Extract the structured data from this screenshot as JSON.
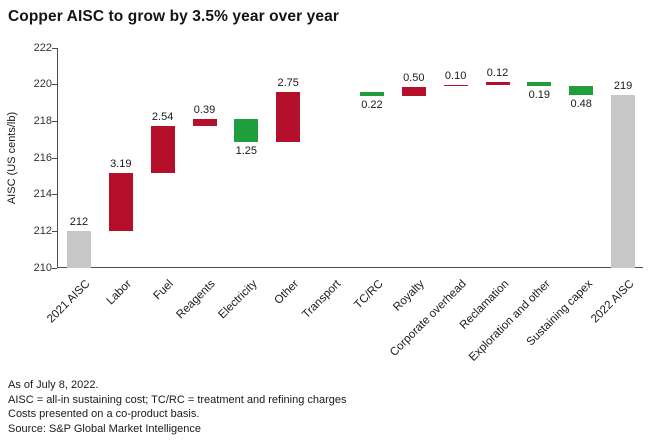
{
  "title": "Copper AISC to grow by 3.5% year over year",
  "chart_data": {
    "type": "bar",
    "subtype": "waterfall",
    "title": "Copper AISC to grow by 3.5% year over year",
    "xlabel": "",
    "ylabel": "AISC (US cents/lb)",
    "ylim": [
      210,
      222
    ],
    "yticks": [
      210,
      212,
      214,
      216,
      218,
      220,
      222
    ],
    "grid": false,
    "legend": "none",
    "colors": {
      "increase": "#b5102b",
      "decrease": "#209e3d",
      "total": "#c7c7c7",
      "none": "transparent"
    },
    "bars": [
      {
        "label": "2021 AISC",
        "type": "total",
        "value": 212,
        "start": 210,
        "end": 212,
        "value_label": "212",
        "label_pos": "above"
      },
      {
        "label": "Labor",
        "type": "increase",
        "value": 3.19,
        "start": 212,
        "end": 215.19,
        "value_label": "3.19",
        "label_pos": "above"
      },
      {
        "label": "Fuel",
        "type": "increase",
        "value": 2.54,
        "start": 215.19,
        "end": 217.73,
        "value_label": "2.54",
        "label_pos": "above"
      },
      {
        "label": "Reagents",
        "type": "increase",
        "value": 0.39,
        "start": 217.73,
        "end": 218.12,
        "value_label": "0.39",
        "label_pos": "above"
      },
      {
        "label": "Electricity",
        "type": "decrease",
        "value": -1.25,
        "start": 218.12,
        "end": 216.87,
        "value_label": "1.25",
        "label_pos": "below"
      },
      {
        "label": "Other",
        "type": "increase",
        "value": 2.75,
        "start": 216.87,
        "end": 219.62,
        "value_label": "2.75",
        "label_pos": "above"
      },
      {
        "label": "Transport",
        "type": "none",
        "value": 0,
        "start": 219.62,
        "end": 219.62,
        "value_label": "",
        "label_pos": "above"
      },
      {
        "label": "TC/RC",
        "type": "decrease",
        "value": -0.22,
        "start": 219.62,
        "end": 219.4,
        "value_label": "0.22",
        "label_pos": "below"
      },
      {
        "label": "Royalty",
        "type": "increase",
        "value": 0.5,
        "start": 219.4,
        "end": 219.9,
        "value_label": "0.50",
        "label_pos": "above"
      },
      {
        "label": "Corporate overhead",
        "type": "increase",
        "value": 0.1,
        "start": 219.9,
        "end": 220.0,
        "value_label": "0.10",
        "label_pos": "above"
      },
      {
        "label": "Reclamation",
        "type": "increase",
        "value": 0.12,
        "start": 220.0,
        "end": 220.12,
        "value_label": "0.12",
        "label_pos": "above"
      },
      {
        "label": "Exploration and other",
        "type": "decrease",
        "value": -0.19,
        "start": 220.12,
        "end": 219.93,
        "value_label": "0.19",
        "label_pos": "below"
      },
      {
        "label": "Sustaining capex",
        "type": "decrease",
        "value": -0.48,
        "start": 219.93,
        "end": 219.45,
        "value_label": "0.48",
        "label_pos": "below"
      },
      {
        "label": "2022 AISC",
        "type": "total",
        "value": 219,
        "start": 210,
        "end": 219.45,
        "value_label": "219",
        "label_pos": "above"
      }
    ]
  },
  "footnotes": [
    "As of July 8, 2022.",
    "AISC = all-in sustaining cost; TC/RC = treatment and refining charges",
    "Costs presented on a co-product basis.",
    "Source: S&P Global Market Intelligence"
  ]
}
